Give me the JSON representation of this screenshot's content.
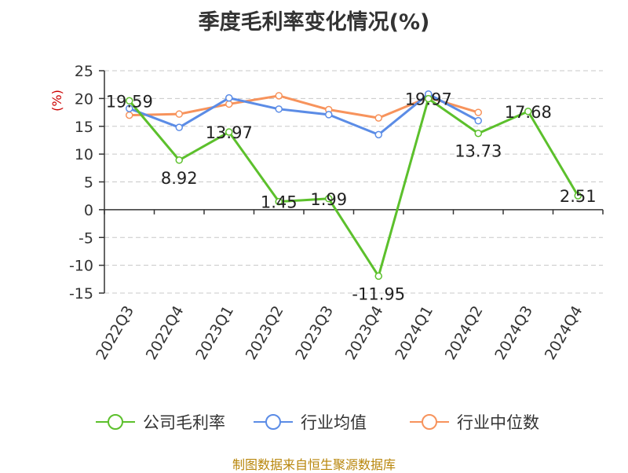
{
  "chart_data": {
    "type": "line",
    "title": "季度毛利率变化情况(%)",
    "ylabel": "(%)",
    "xlabel": "",
    "categories": [
      "2022Q3",
      "2022Q4",
      "2023Q1",
      "2023Q2",
      "2023Q3",
      "2023Q4",
      "2024Q1",
      "2024Q2",
      "2024Q3",
      "2024Q4"
    ],
    "ylim": [
      -15,
      25
    ],
    "yticks": [
      25,
      20,
      15,
      10,
      5,
      0,
      -5,
      -10,
      -15
    ],
    "grid": true,
    "legend_position": "bottom",
    "series": [
      {
        "name": "公司毛利率",
        "color": "#5cc02c",
        "values": [
          19.59,
          8.92,
          13.97,
          1.45,
          1.99,
          -11.95,
          19.97,
          13.73,
          17.68,
          2.51
        ],
        "labels": [
          "19.59",
          "8.92",
          "13.97",
          "1.45",
          "1.99",
          "-11.95",
          "19.97",
          "13.73",
          "17.68",
          "2.51"
        ]
      },
      {
        "name": "行业均值",
        "color": "#5b8ce6",
        "values": [
          18.2,
          14.8,
          20.1,
          18.1,
          17.1,
          13.5,
          20.8,
          16.0,
          null,
          null
        ]
      },
      {
        "name": "行业中位数",
        "color": "#f7935c",
        "values": [
          17.0,
          17.2,
          19.0,
          20.5,
          18.0,
          16.5,
          20.2,
          17.5,
          null,
          null
        ]
      }
    ]
  },
  "source": "制图数据来自恒生聚源数据库"
}
